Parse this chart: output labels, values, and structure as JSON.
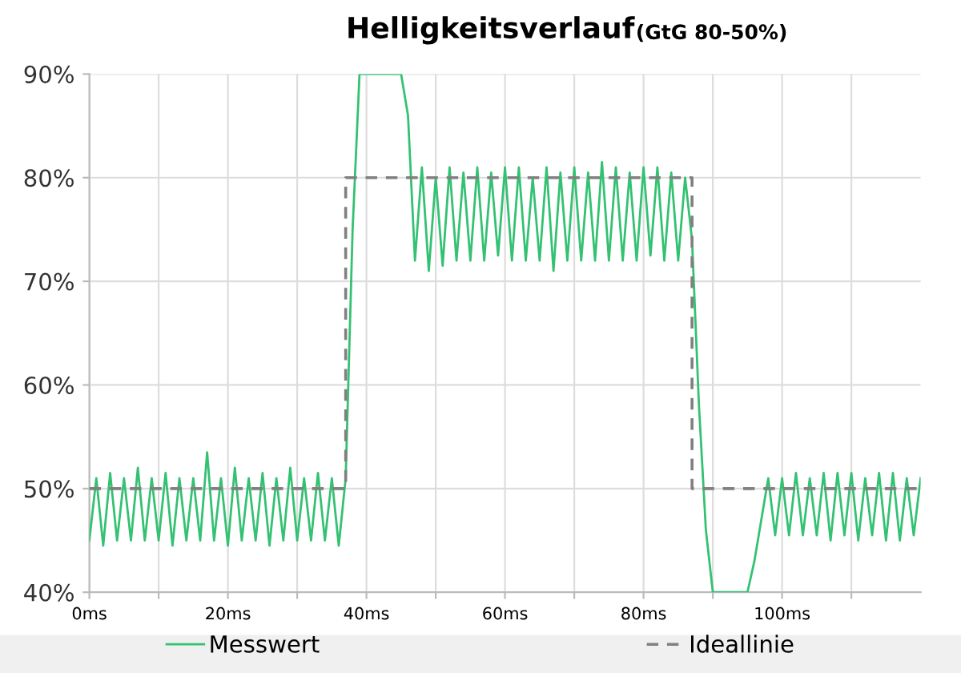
{
  "chart_data": {
    "type": "line",
    "title": "Helligkeitsverlauf",
    "subtitle": "(GtG 80-50%)",
    "xlim": [
      0,
      120
    ],
    "ylim": [
      40,
      90
    ],
    "xticks": [
      {
        "value": 0,
        "label": "0ms"
      },
      {
        "value": 10,
        "label": null
      },
      {
        "value": 20,
        "label": "20ms"
      },
      {
        "value": 30,
        "label": null
      },
      {
        "value": 40,
        "label": "40ms"
      },
      {
        "value": 50,
        "label": null
      },
      {
        "value": 60,
        "label": "60ms"
      },
      {
        "value": 70,
        "label": null
      },
      {
        "value": 80,
        "label": "80ms"
      },
      {
        "value": 90,
        "label": null
      },
      {
        "value": 100,
        "label": "100ms"
      },
      {
        "value": 110,
        "label": null
      }
    ],
    "yticks": [
      {
        "value": 40,
        "label": "40%"
      },
      {
        "value": 50,
        "label": "50%"
      },
      {
        "value": 60,
        "label": "60%"
      },
      {
        "value": 70,
        "label": "70%"
      },
      {
        "value": 80,
        "label": "80%"
      },
      {
        "value": 90,
        "label": "90%"
      }
    ],
    "grid": true,
    "legend": "bottom",
    "marker": "none",
    "series": [
      {
        "name": "Messwert",
        "color": "#33c172",
        "line_style": "solid",
        "x": [
          0,
          1,
          2,
          3,
          4,
          5,
          6,
          7,
          8,
          9,
          10,
          11,
          12,
          13,
          14,
          15,
          16,
          17,
          18,
          19,
          20,
          21,
          22,
          23,
          24,
          25,
          26,
          27,
          28,
          29,
          30,
          31,
          32,
          33,
          34,
          35,
          36,
          37,
          38,
          39,
          40,
          41,
          42,
          43,
          44,
          45,
          46,
          47,
          48,
          49,
          50,
          51,
          52,
          53,
          54,
          55,
          56,
          57,
          58,
          59,
          60,
          61,
          62,
          63,
          64,
          65,
          66,
          67,
          68,
          69,
          70,
          71,
          72,
          73,
          74,
          75,
          76,
          77,
          78,
          79,
          80,
          81,
          82,
          83,
          84,
          85,
          86,
          87,
          88,
          89,
          90,
          91,
          92,
          93,
          94,
          95,
          96,
          97,
          98,
          99,
          100,
          101,
          102,
          103,
          104,
          105,
          106,
          107,
          108,
          109,
          110,
          111,
          112,
          113,
          114,
          115,
          116,
          117,
          118,
          119,
          120
        ],
        "values": [
          45,
          51,
          44.5,
          51.5,
          45,
          51,
          45,
          52,
          45,
          51,
          45,
          51.5,
          44.5,
          51,
          45,
          51,
          45,
          53.5,
          45,
          51,
          44.5,
          52,
          45,
          51,
          45,
          51.5,
          44.5,
          51,
          45,
          52,
          45,
          51,
          45,
          51.5,
          45,
          51,
          44.5,
          51,
          75,
          90,
          90,
          90,
          90,
          90,
          90,
          90,
          86,
          72,
          81,
          71,
          80,
          71.5,
          81,
          72,
          80.5,
          72,
          81,
          72,
          80.5,
          72.5,
          81,
          72,
          81,
          72,
          80,
          72,
          81,
          71,
          80.5,
          72,
          81,
          72,
          80.5,
          72,
          81.5,
          72,
          81,
          72,
          80.5,
          72,
          81,
          72.5,
          81,
          72,
          80.5,
          72,
          80,
          74,
          58,
          46,
          40,
          40,
          40,
          40,
          40,
          40,
          43,
          47,
          51,
          45.5,
          51,
          45.5,
          51.5,
          45.5,
          51,
          45.5,
          51.5,
          45,
          51.5,
          45.5,
          51.5,
          45,
          51,
          45.5,
          51.5,
          45,
          51.5,
          45,
          51,
          45.5,
          51
        ]
      },
      {
        "name": "Ideallinie",
        "color": "#808080",
        "line_style": "dashed",
        "x": [
          0,
          37,
          37,
          87,
          87,
          120
        ],
        "values": [
          50,
          50,
          80,
          80,
          50,
          50
        ]
      }
    ]
  }
}
